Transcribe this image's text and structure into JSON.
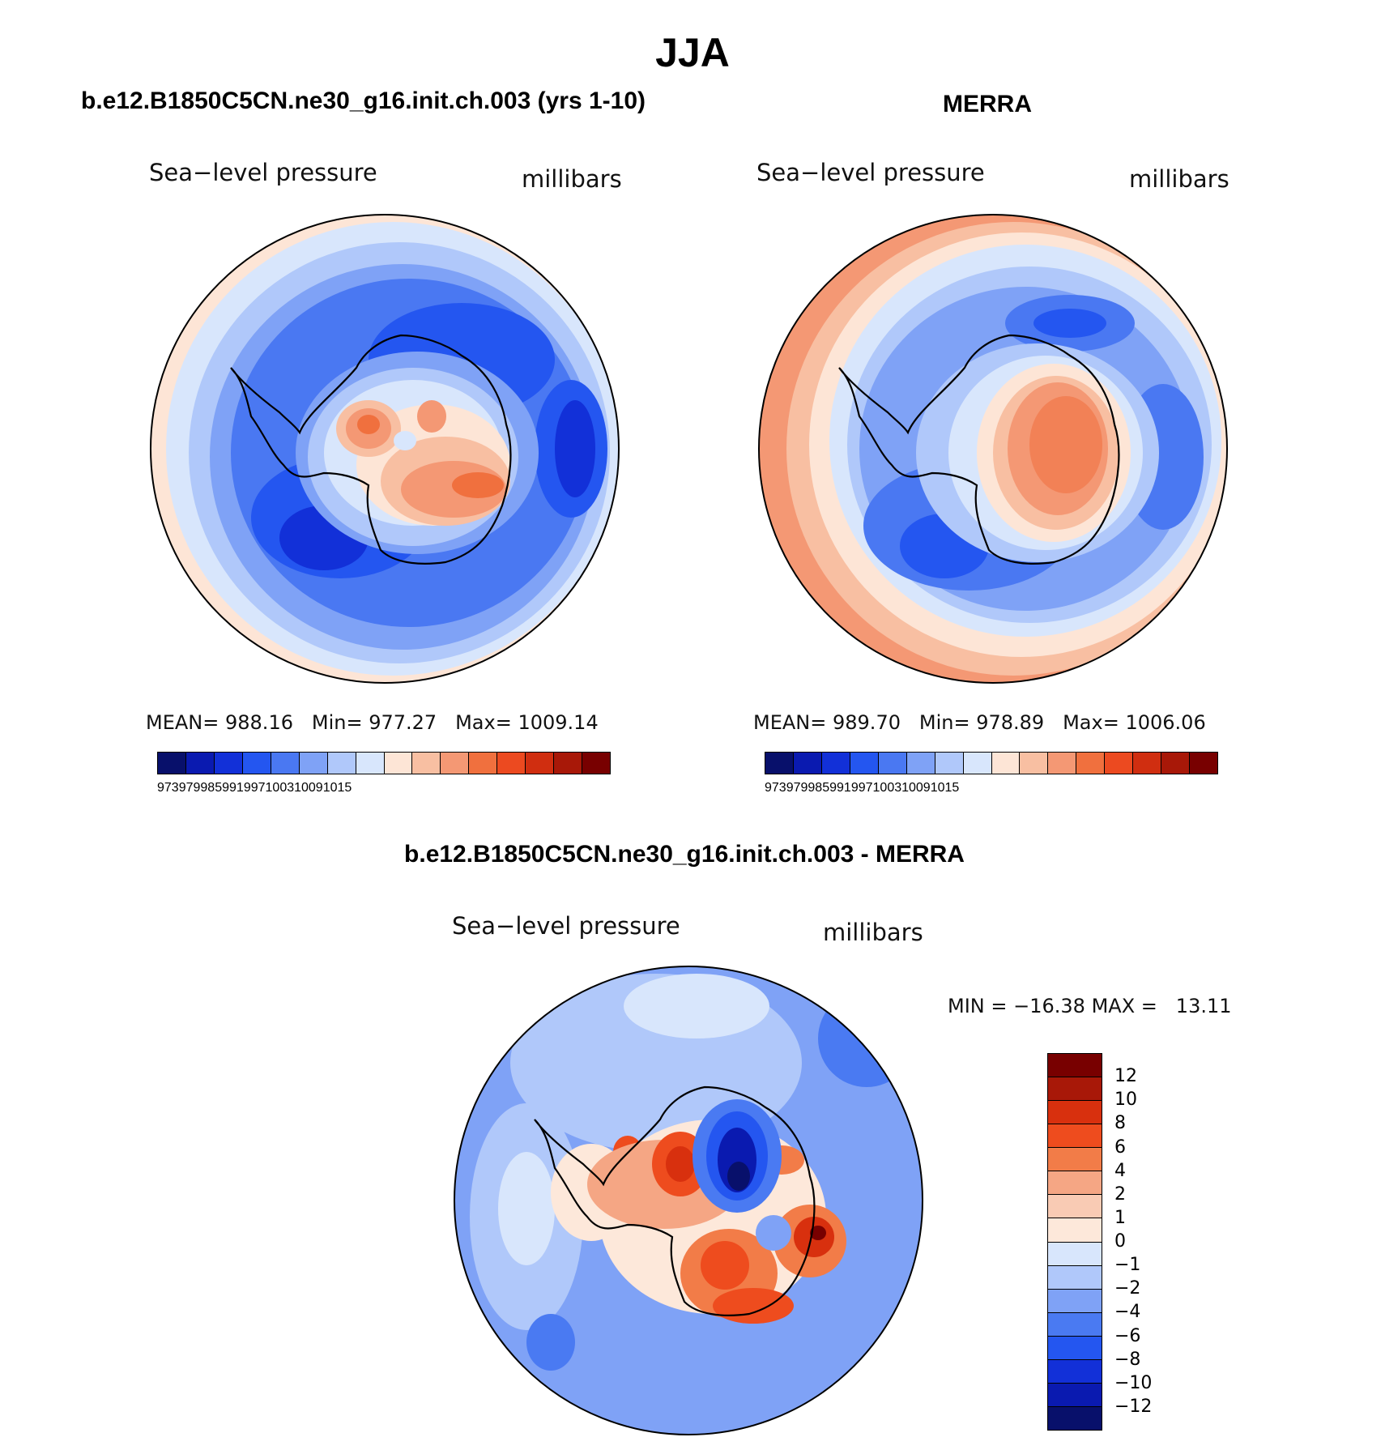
{
  "page": {
    "title": "JJA"
  },
  "colors": {
    "abs_scale": [
      "#08106b",
      "#0a1ab0",
      "#1230d8",
      "#2456f0",
      "#4a78f2",
      "#7fa2f6",
      "#b0c8fa",
      "#d8e6fc",
      "#fde5d6",
      "#f8bfa2",
      "#f49874",
      "#f0703e",
      "#ec4a20",
      "#d02e10",
      "#a81808",
      "#780000"
    ],
    "diff_scale": [
      "#780000",
      "#a81808",
      "#d8300e",
      "#ee4c1e",
      "#f27c48",
      "#f5a684",
      "#f9cbb4",
      "#fde8da",
      "#d8e6fc",
      "#b0c8fa",
      "#7fa2f6",
      "#4a7af2",
      "#2456f0",
      "#1230d8",
      "#0a1ab0",
      "#08106b"
    ],
    "coastline": "#000000"
  },
  "panel1": {
    "heading": "b.e12.B1850C5CN.ne30_g16.init.ch.003 (yrs 1-10)",
    "field": "Sea−level pressure",
    "units": "millibars",
    "stats": {
      "mean_label": "MEAN=",
      "mean": "988.16",
      "min_label": "Min=",
      "min": "977.27",
      "max_label": "Max=",
      "max": "1009.14"
    },
    "colorbar_labels": [
      "973",
      "979",
      "985",
      "991",
      "997",
      "1003",
      "1009",
      "1015"
    ]
  },
  "panel2": {
    "heading": "MERRA",
    "field": "Sea−level pressure",
    "units": "millibars",
    "stats": {
      "mean_label": "MEAN=",
      "mean": "989.70",
      "min_label": "Min=",
      "min": "978.89",
      "max_label": "Max=",
      "max": "1006.06"
    },
    "colorbar_labels": [
      "973",
      "979",
      "985",
      "991",
      "997",
      "1003",
      "1009",
      "1015"
    ]
  },
  "panel3": {
    "heading": "b.e12.B1850C5CN.ne30_g16.init.ch.003 - MERRA",
    "field": "Sea−level pressure",
    "units": "millibars",
    "stats": {
      "min_label": "MIN =",
      "min": "−16.38",
      "max_label": "MAX =",
      "max": "13.11"
    },
    "colorbar_labels": [
      "12",
      "10",
      "8",
      "6",
      "4",
      "2",
      "1",
      "0",
      "−1",
      "−2",
      "−4",
      "−6",
      "−8",
      "−10",
      "−12"
    ]
  }
}
